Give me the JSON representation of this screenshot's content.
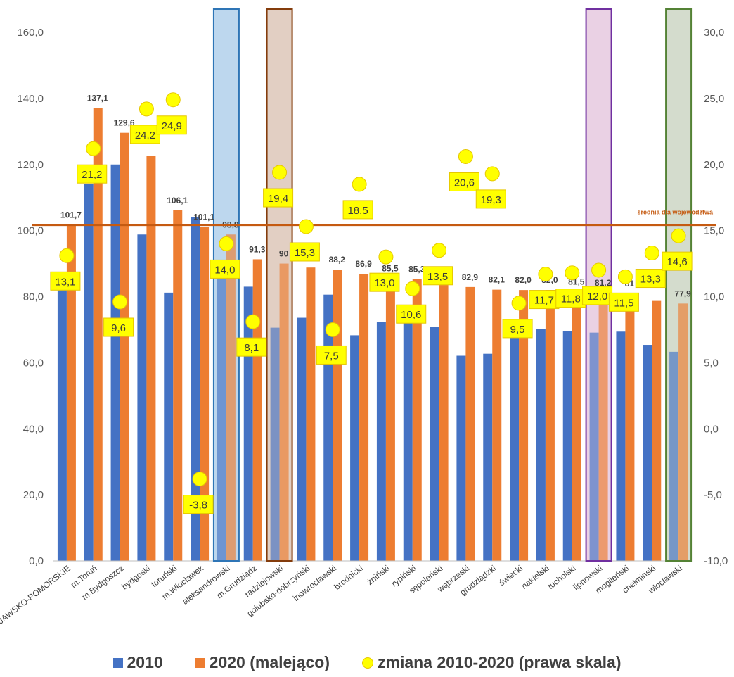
{
  "chart_data": {
    "type": "bar",
    "categories": [
      "KUJAWSKO-POMORSKIE",
      "m.Toruń",
      "m.Bydgoszcz",
      "bydgoski",
      "toruński",
      "m.Włocławek",
      "aleksandrowski",
      "m.Grudziądz",
      "radziejowski",
      "golubsko-dobrzyński",
      "inowrocławski",
      "brodnicki",
      "żniński",
      "rypiński",
      "sępoleński",
      "wąbrzeski",
      "grudziądzki",
      "świecki",
      "nakielski",
      "tucholski",
      "lipnowski",
      "mogileński",
      "chełmiński",
      "włocławski"
    ],
    "series": [
      {
        "name": "2010",
        "color": "#4472c4",
        "values": [
          81.9,
          114.1,
          120.0,
          98.8,
          81.2,
          104.1,
          85.3,
          83.0,
          70.6,
          73.6,
          80.6,
          68.3,
          72.4,
          74.1,
          70.8,
          62.1,
          62.7,
          68.2,
          70.2,
          69.6,
          69.1,
          69.4,
          65.4,
          63.3
        ]
      },
      {
        "name": "2020 (malejąco)",
        "color": "#ed7d31",
        "values": [
          101.7,
          137.1,
          129.6,
          122.7,
          106.1,
          101.1,
          98.8,
          91.3,
          90.0,
          88.8,
          88.2,
          86.9,
          85.5,
          85.3,
          83.5,
          82.9,
          82.1,
          82.0,
          82.0,
          81.5,
          81.2,
          81.0,
          78.7,
          77.9
        ]
      },
      {
        "name": "zmiana 2010-2020 (prawa skala)",
        "color": "#ffff00",
        "values": [
          13.1,
          21.2,
          9.6,
          24.2,
          24.9,
          -3.8,
          14.0,
          8.1,
          19.4,
          15.3,
          7.5,
          18.5,
          13.0,
          10.6,
          13.5,
          20.6,
          19.3,
          9.5,
          11.7,
          11.8,
          12.0,
          11.5,
          13.3,
          14.6
        ]
      }
    ],
    "bar_labels_2020": [
      "101,7",
      "137,1",
      "129,6",
      "",
      "106,1",
      "101,1",
      "98,8",
      "91,3",
      "90",
      "",
      "88,2",
      "86,9",
      "85,5",
      "85,3",
      "",
      "82,9",
      "82,1",
      "82,0",
      "82,0",
      "81,5",
      "81,2",
      "81",
      "",
      "77,9"
    ],
    "change_labels": [
      "13,1",
      "21,2",
      "9,6",
      "24,2",
      "24,9",
      "-3,8",
      "14,0",
      "8,1",
      "19,4",
      "15,3",
      "7,5",
      "18,5",
      "13,0",
      "10,6",
      "13,5",
      "20,6",
      "19,3",
      "9,5",
      "11,7",
      "11,8",
      "12,0",
      "11,5",
      "13,3",
      "14,6"
    ],
    "left_axis": {
      "min": 0,
      "max": 160,
      "ticks": [
        "0,0",
        "20,0",
        "40,0",
        "60,0",
        "80,0",
        "100,0",
        "120,0",
        "140,0",
        "160,0"
      ]
    },
    "right_axis": {
      "min": -10,
      "max": 30,
      "ticks": [
        "-10,0",
        "-5,0",
        "0,0",
        "5,0",
        "10,0",
        "15,0",
        "20,0",
        "25,0",
        "30,0"
      ]
    },
    "average_line": {
      "value": 101.7,
      "label": "średnia dla województwa",
      "color": "#c55a11"
    },
    "highlights": [
      {
        "category": "aleksandrowski",
        "border": "#2e75b6",
        "fill": "#bdd7ee"
      },
      {
        "category": "radziejowski",
        "border": "#843c0c",
        "fill": "#e2cfc4"
      },
      {
        "category": "lipnowski",
        "border": "#7030a0",
        "fill": "#ead1e4"
      },
      {
        "category": "włocławski",
        "border": "#548235",
        "fill": "#d5dccd"
      }
    ],
    "grid": false,
    "legend_position": "bottom"
  },
  "legend": [
    "2010",
    "2020 (malejąco)",
    "zmiana 2010-2020 (prawa skala)"
  ]
}
